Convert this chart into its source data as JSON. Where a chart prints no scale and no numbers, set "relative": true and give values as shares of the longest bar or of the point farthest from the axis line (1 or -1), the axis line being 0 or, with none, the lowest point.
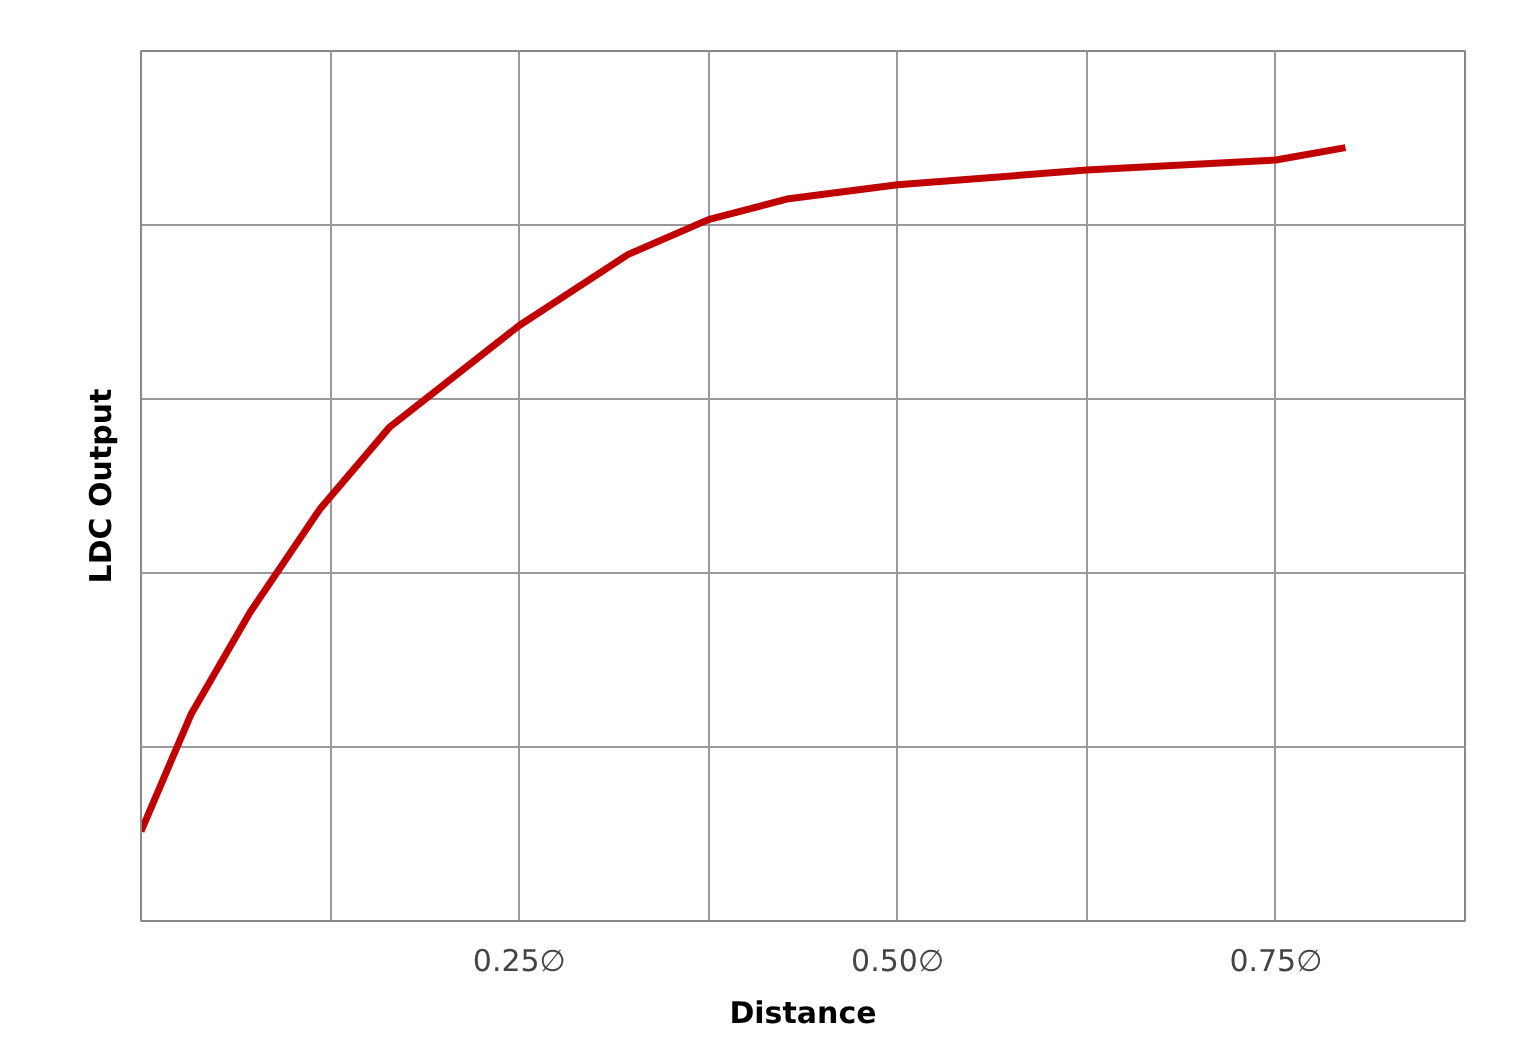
{
  "chart_data": {
    "type": "line",
    "xlabel": "Distance",
    "ylabel": "LDC Output",
    "relative": true,
    "xlim": [
      0,
      0.875
    ],
    "xticks": [
      {
        "value": 0.125,
        "label": null
      },
      {
        "value": 0.25,
        "label": "0.25∅"
      },
      {
        "value": 0.375,
        "label": null
      },
      {
        "value": 0.5,
        "label": "0.50∅"
      },
      {
        "value": 0.625,
        "label": null
      },
      {
        "value": 0.75,
        "label": "0.75∅"
      }
    ],
    "tick_labels": "x",
    "grid": true,
    "marker": "none",
    "line_style": "solid",
    "series": [
      {
        "color": "#c00000",
        "x": [
          0,
          0.033,
          0.072,
          0.118,
          0.164,
          0.25,
          0.322,
          0.375,
          0.428,
          0.5,
          0.625,
          0.75,
          0.796
        ],
        "values": [
          0.116,
          0.267,
          0.399,
          0.532,
          0.638,
          0.77,
          0.862,
          0.907,
          0.934,
          0.952,
          0.971,
          0.984,
          1.0
        ]
      }
    ]
  }
}
